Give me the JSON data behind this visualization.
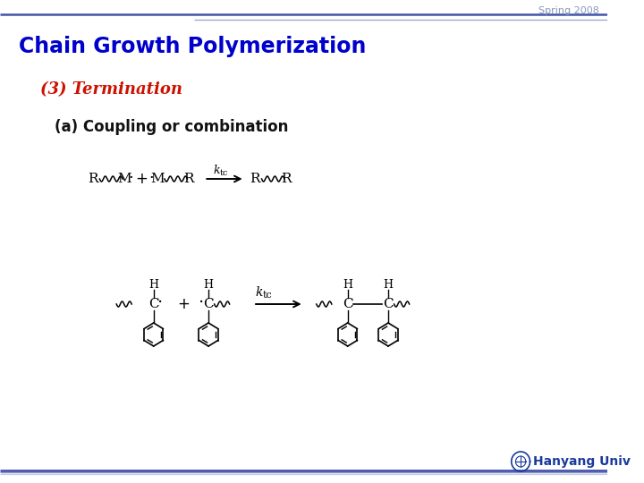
{
  "title": "Chain Growth Polymerization",
  "subtitle": "(3) Termination",
  "subsubtitle": "(a) Coupling or combination",
  "spring_text": "Spring 2008",
  "hanyang_text": "Hanyang Univ",
  "title_color": "#0000cc",
  "subtitle_color": "#cc1100",
  "spring_color": "#8899bb",
  "hanyang_color": "#1a3a9c",
  "bg_color": "#ffffff",
  "line_color": "#4455aa",
  "body_color": "#111111"
}
